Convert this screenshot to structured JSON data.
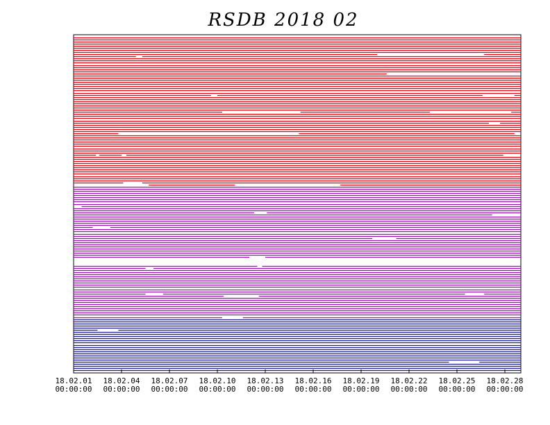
{
  "chart_data": {
    "type": "timeline",
    "title": "RSDB 2018 02",
    "xlim": [
      0,
      28
    ],
    "xticks": [
      {
        "value": 0,
        "label": "18.02.01",
        "time": "00:00:00"
      },
      {
        "value": 3,
        "label": "18.02.04",
        "time": "00:00:00"
      },
      {
        "value": 6,
        "label": "18.02.07",
        "time": "00:00:00"
      },
      {
        "value": 9,
        "label": "18.02.10",
        "time": "00:00:00"
      },
      {
        "value": 12,
        "label": "18.02.13",
        "time": "00:00:00"
      },
      {
        "value": 15,
        "label": "18.02.16",
        "time": "00:00:00"
      },
      {
        "value": 18,
        "label": "18.02.19",
        "time": "00:00:00"
      },
      {
        "value": 21,
        "label": "18.02.22",
        "time": "00:00:00"
      },
      {
        "value": 24,
        "label": "18.02.25",
        "time": "00:00:00"
      },
      {
        "value": 27,
        "label": "18.02.28",
        "time": "00:00:00"
      }
    ],
    "groups": [
      {
        "color": "#e8000a",
        "rows": [
          [
            [
              0,
              28
            ]
          ],
          [
            [
              0,
              28
            ]
          ],
          [
            [
              0,
              28
            ]
          ],
          [
            [
              0,
              28
            ]
          ],
          [
            [
              0,
              28
            ]
          ],
          [
            [
              0,
              28
            ]
          ],
          [
            [
              0,
              28
            ]
          ],
          [
            [
              0,
              28
            ]
          ],
          [
            [
              0,
              19
            ],
            [
              25.7,
              28
            ]
          ],
          [
            [
              0,
              3.9
            ],
            [
              4.3,
              28
            ]
          ],
          [
            [
              0,
              28
            ]
          ],
          [
            [
              0,
              28
            ]
          ],
          [
            [
              0,
              28
            ]
          ],
          [
            [
              0,
              28
            ]
          ],
          [
            [
              0,
              28
            ]
          ],
          [
            [
              0,
              28
            ]
          ],
          [
            [
              0,
              28
            ]
          ],
          [
            [
              0,
              19.6
            ]
          ],
          [
            [
              0,
              28
            ]
          ],
          [
            [
              0,
              28
            ]
          ],
          [
            [
              0,
              28
            ]
          ],
          [
            [
              0,
              28
            ]
          ],
          [
            [
              0,
              28
            ]
          ],
          [
            [
              0,
              28
            ]
          ],
          [
            [
              0,
              28
            ]
          ],
          [
            [
              0,
              28
            ]
          ],
          [
            [
              0,
              28
            ]
          ],
          [
            [
              0,
              8.6
            ],
            [
              9,
              25.6
            ],
            [
              27.6,
              28
            ]
          ],
          [
            [
              0,
              28
            ]
          ],
          [
            [
              0,
              28
            ]
          ],
          [
            [
              0,
              28
            ]
          ],
          [
            [
              0,
              28
            ]
          ],
          [
            [
              0,
              28
            ]
          ],
          [
            [
              0,
              28
            ]
          ],
          [
            [
              0,
              28
            ]
          ],
          [
            [
              0,
              9.3
            ],
            [
              14.2,
              22.3
            ],
            [
              27.4,
              28
            ]
          ],
          [
            [
              0,
              28
            ]
          ],
          [
            [
              0,
              28
            ]
          ],
          [
            [
              0,
              28
            ]
          ],
          [
            [
              0,
              28
            ]
          ],
          [
            [
              0,
              26
            ],
            [
              26.7,
              28
            ]
          ],
          [
            [
              0,
              28
            ]
          ],
          [
            [
              0,
              28
            ]
          ],
          [
            [
              0,
              28
            ]
          ],
          [
            [
              0,
              28
            ]
          ],
          [
            [
              0,
              2.8
            ],
            [
              14.1,
              27.6
            ]
          ],
          [
            [
              0,
              28
            ]
          ],
          [
            [
              0,
              28
            ]
          ],
          [
            [
              0,
              28
            ]
          ],
          [
            [
              0,
              28
            ]
          ],
          [
            [
              0,
              28
            ]
          ],
          [
            [
              0,
              28
            ]
          ],
          [
            [
              0,
              28
            ]
          ],
          [
            [
              0,
              28
            ]
          ],
          [
            [
              0,
              28
            ]
          ],
          [
            [
              0,
              1.4
            ],
            [
              1.6,
              3
            ],
            [
              3.3,
              26.9
            ]
          ],
          [
            [
              0,
              28
            ]
          ],
          [
            [
              0,
              28
            ]
          ],
          [
            [
              0,
              28
            ]
          ],
          [
            [
              0,
              28
            ]
          ],
          [
            [
              0,
              28
            ]
          ],
          [
            [
              0,
              28
            ]
          ],
          [
            [
              0,
              28
            ]
          ],
          [
            [
              0,
              28
            ]
          ],
          [
            [
              0,
              28
            ]
          ],
          [
            [
              0,
              28
            ]
          ],
          [
            [
              0,
              28
            ]
          ],
          [
            [
              0,
              28
            ]
          ],
          [
            [
              0,
              3.1
            ],
            [
              4.3,
              28
            ]
          ],
          [
            [
              4.7,
              10.1
            ],
            [
              16.7,
              28
            ]
          ]
        ]
      },
      {
        "color": "#9b10b5",
        "rows": [
          [
            [
              0,
              28
            ]
          ],
          [
            [
              0,
              28
            ]
          ],
          [
            [
              0,
              28
            ]
          ],
          [
            [
              0,
              28
            ]
          ],
          [
            [
              0,
              28
            ]
          ],
          [
            [
              0,
              28
            ]
          ],
          [
            [
              0,
              28
            ]
          ],
          [
            [
              0,
              28
            ]
          ],
          [
            [
              0,
              28
            ]
          ],
          [
            [
              0.5,
              28
            ]
          ],
          [
            [
              0,
              28
            ]
          ],
          [
            [
              0,
              28
            ]
          ],
          [
            [
              0,
              11.3
            ],
            [
              12.1,
              28
            ]
          ],
          [
            [
              0,
              26.2
            ]
          ],
          [
            [
              0,
              28
            ]
          ],
          [
            [
              0,
              28
            ]
          ],
          [
            [
              0,
              28
            ]
          ],
          [
            [
              0,
              28
            ]
          ],
          [
            [
              0,
              28
            ]
          ],
          [
            [
              0,
              1.2
            ],
            [
              2.3,
              28
            ]
          ],
          [
            [
              0,
              28
            ]
          ],
          [
            [
              0,
              28
            ]
          ],
          [
            [
              0,
              28
            ]
          ],
          [
            [
              0,
              28
            ]
          ],
          [
            [
              0,
              18.7
            ],
            [
              20.2,
              28
            ]
          ],
          [
            [
              0,
              28
            ]
          ],
          [
            [
              0,
              28
            ]
          ],
          [
            [
              0,
              28
            ]
          ],
          [
            [
              0,
              28
            ]
          ],
          [
            [
              0,
              28
            ]
          ],
          [
            [
              0,
              28
            ]
          ],
          [
            [
              0,
              28
            ]
          ],
          [
            [
              0,
              28
            ]
          ],
          [
            [
              0,
              11
            ],
            [
              12,
              28
            ]
          ],
          [],
          [],
          [],
          [
            [
              0,
              11.5
            ],
            [
              11.8,
              28
            ]
          ],
          [
            [
              0,
              4.5
            ],
            [
              5,
              28
            ]
          ],
          [
            [
              0,
              28
            ]
          ],
          [
            [
              0,
              28
            ]
          ],
          [
            [
              0,
              28
            ]
          ],
          [
            [
              0,
              28
            ]
          ],
          [
            [
              0,
              28
            ]
          ],
          [
            [
              0,
              28
            ]
          ],
          [
            [
              0,
              28
            ]
          ],
          [
            [
              0,
              28
            ]
          ],
          [
            [
              0,
              28
            ]
          ],
          [
            [
              0,
              28
            ]
          ],
          [
            [
              0,
              28
            ]
          ],
          [
            [
              0,
              4.5
            ],
            [
              5.6,
              24.5
            ],
            [
              25.7,
              28
            ]
          ],
          [
            [
              0,
              9.4
            ],
            [
              11.6,
              28
            ]
          ],
          [
            [
              0,
              28
            ]
          ],
          [
            [
              0,
              28
            ]
          ],
          [
            [
              0,
              28
            ]
          ],
          [
            [
              0,
              28
            ]
          ],
          [
            [
              0,
              28
            ]
          ],
          [
            [
              0,
              28
            ]
          ],
          [
            [
              0,
              28
            ]
          ],
          [
            [
              0,
              28
            ]
          ],
          [
            [
              0,
              28
            ]
          ],
          [
            [
              0,
              9.3
            ],
            [
              10.6,
              28
            ]
          ]
        ]
      },
      {
        "color": "#1c1c96",
        "rows": [
          [
            [
              0,
              28
            ]
          ],
          [
            [
              0,
              28
            ]
          ],
          [
            [
              0,
              28
            ]
          ],
          [
            [
              0,
              28
            ]
          ],
          [
            [
              0,
              28
            ]
          ],
          [
            [
              0,
              1.5
            ],
            [
              2.8,
              28
            ]
          ],
          [
            [
              0,
              28
            ]
          ],
          [
            [
              0,
              28
            ]
          ],
          [
            [
              0,
              28
            ]
          ],
          [
            [
              0,
              28
            ]
          ],
          [
            [
              0,
              28
            ]
          ],
          [
            [
              0,
              28
            ]
          ],
          [
            [
              0,
              28
            ]
          ],
          [
            [
              0,
              28
            ]
          ],
          [
            [
              0,
              28
            ]
          ],
          [
            [
              0,
              28
            ]
          ],
          [
            [
              0,
              28
            ]
          ],
          [
            [
              0,
              28
            ]
          ],
          [
            [
              0,
              28
            ]
          ],
          [
            [
              0,
              28
            ]
          ],
          [
            [
              0,
              23.5
            ],
            [
              25.4,
              28
            ]
          ],
          [
            [
              0,
              28
            ]
          ],
          [
            [
              0,
              28
            ]
          ],
          [
            [
              0,
              28
            ]
          ],
          [
            [
              0,
              28
            ]
          ]
        ]
      }
    ]
  }
}
